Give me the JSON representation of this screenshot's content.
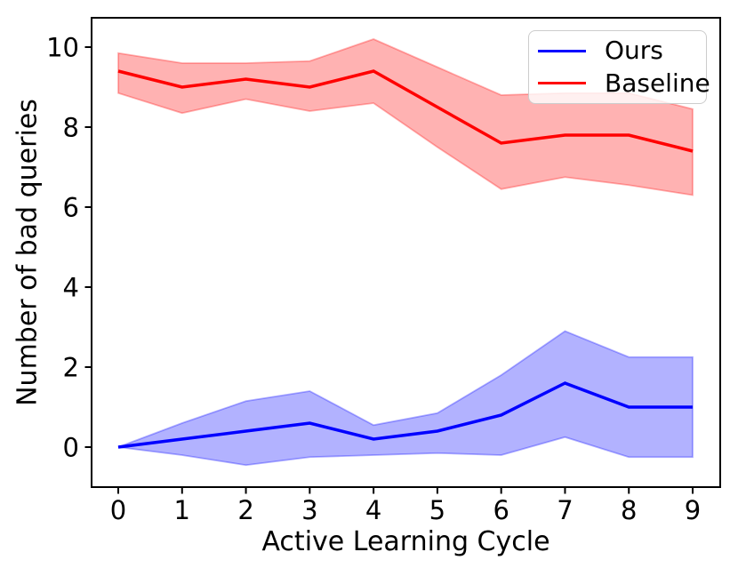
{
  "colors": {
    "axis": "#000000",
    "tick_label": "#000000",
    "legend_border": "#cccccc",
    "background": "#ffffff"
  },
  "chart_data": {
    "type": "line",
    "title": "",
    "xlabel": "Active Learning Cycle",
    "ylabel": "Number of bad queries",
    "x": [
      0,
      1,
      2,
      3,
      4,
      5,
      6,
      7,
      8,
      9
    ],
    "xticks": [
      0,
      1,
      2,
      3,
      4,
      5,
      6,
      7,
      8,
      9
    ],
    "yticks": [
      0,
      2,
      4,
      6,
      8,
      10
    ],
    "xlim": [
      -0.42,
      9.43
    ],
    "ylim": [
      -1.0,
      10.73
    ],
    "grid": false,
    "legend_position": "upper right",
    "series": [
      {
        "name": "Ours",
        "color": "#0000ff",
        "band_alpha": 0.3,
        "mean": [
          0.0,
          0.2,
          0.4,
          0.6,
          0.2,
          0.4,
          0.8,
          1.6,
          1.0,
          1.0
        ],
        "band_upper": [
          0.0,
          0.6,
          1.15,
          1.4,
          0.55,
          0.85,
          1.8,
          2.9,
          2.25,
          2.25
        ],
        "band_lower": [
          0.0,
          -0.2,
          -0.45,
          -0.25,
          -0.2,
          -0.15,
          -0.2,
          0.25,
          -0.25,
          -0.25
        ]
      },
      {
        "name": "Baseline",
        "color": "#ff0000",
        "band_alpha": 0.3,
        "mean": [
          9.4,
          9.0,
          9.2,
          9.0,
          9.4,
          8.5,
          7.6,
          7.8,
          7.8,
          7.4
        ],
        "band_upper": [
          9.85,
          9.6,
          9.6,
          9.65,
          10.2,
          9.5,
          8.8,
          8.85,
          8.85,
          8.45
        ],
        "band_lower": [
          8.85,
          8.35,
          8.7,
          8.4,
          8.6,
          7.5,
          6.45,
          6.75,
          6.55,
          6.3
        ]
      }
    ]
  }
}
